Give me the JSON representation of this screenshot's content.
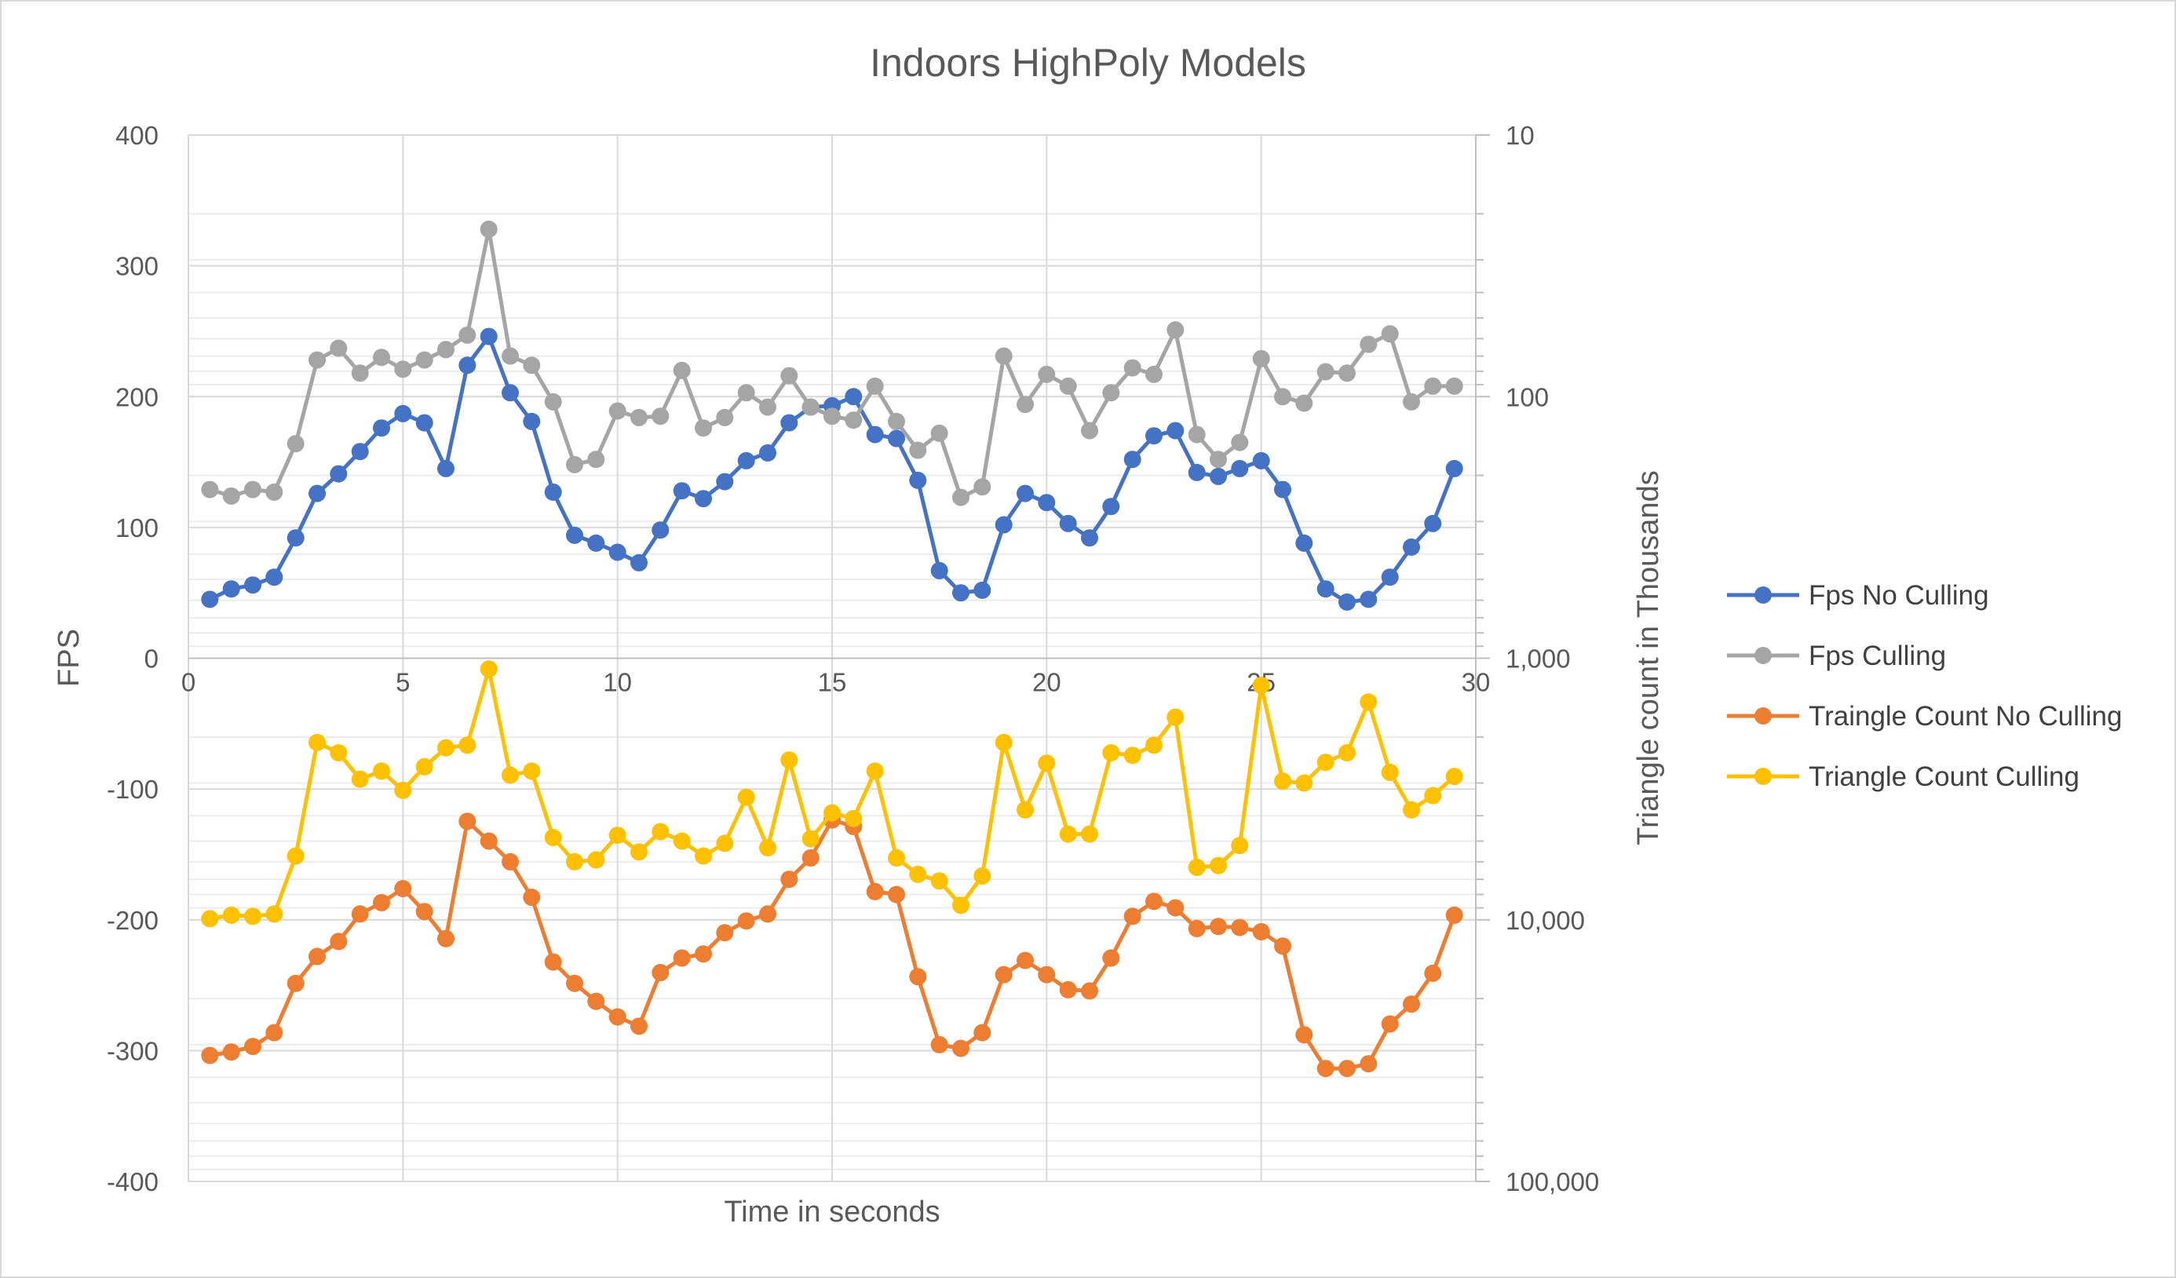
{
  "chart_data": {
    "type": "line",
    "title": "Indoors HighPoly Models",
    "xlabel": "Time in seconds",
    "ylabel": "FPS",
    "y2label": "Triangle count in Thousands",
    "xlim": [
      0,
      30
    ],
    "ylim": [
      -400,
      400
    ],
    "y2lim": [
      10,
      100000
    ],
    "y2scale": "log",
    "y2reversed": true,
    "x_ticks": [
      "0",
      "5",
      "10",
      "15",
      "20",
      "25",
      "30"
    ],
    "y_ticks": [
      "400",
      "300",
      "200",
      "100",
      "0",
      "-100",
      "-200",
      "-300",
      "-400"
    ],
    "y2_ticks": [
      "10",
      "100",
      "1,000",
      "10,000",
      "100,000"
    ],
    "grid": true,
    "legend_position": "right",
    "x": [
      0.5,
      1.0,
      1.5,
      2.0,
      2.5,
      3.0,
      3.5,
      4.0,
      4.5,
      5.0,
      5.5,
      6.0,
      6.5,
      7.0,
      7.5,
      8.0,
      8.5,
      9.0,
      9.5,
      10.0,
      10.5,
      11.0,
      11.5,
      12.0,
      12.5,
      13.0,
      13.5,
      14.0,
      14.5,
      15.0,
      15.5,
      16.0,
      16.5,
      17.0,
      17.5,
      18.0,
      18.5,
      19.0,
      19.5,
      20.0,
      20.5,
      21.0,
      21.5,
      22.0,
      22.5,
      23.0,
      23.5,
      24.0,
      24.5,
      25.0,
      25.5,
      26.0,
      26.5,
      27.0,
      27.5,
      28.0,
      28.5,
      29.0,
      29.5,
      30.0
    ],
    "series": [
      {
        "name": "Fps No Culling",
        "axis": "left",
        "color": "#4472C4",
        "values": [
          45,
          53,
          56,
          62,
          92,
          126,
          141,
          158,
          176,
          187,
          180,
          145,
          224,
          246,
          203,
          181,
          127,
          94,
          88,
          81,
          73,
          98,
          128,
          122,
          135,
          151,
          157,
          180,
          192,
          193,
          200,
          171,
          168,
          136,
          67,
          50,
          52,
          102,
          126,
          119,
          103,
          92,
          116,
          152,
          170,
          174,
          142,
          139,
          145,
          151,
          129,
          88,
          53,
          43,
          45,
          62,
          85,
          103,
          145,
          null
        ]
      },
      {
        "name": "Fps Culling",
        "axis": "left",
        "color": "#A5A5A5",
        "values": [
          129,
          124,
          129,
          127,
          164,
          228,
          237,
          218,
          230,
          221,
          228,
          236,
          247,
          328,
          231,
          224,
          196,
          148,
          152,
          189,
          184,
          185,
          220,
          176,
          184,
          203,
          192,
          216,
          192,
          185,
          182,
          208,
          181,
          159,
          172,
          123,
          131,
          231,
          194,
          217,
          208,
          174,
          203,
          222,
          217,
          251,
          171,
          152,
          165,
          229,
          200,
          195,
          219,
          218,
          240,
          248,
          196,
          208,
          208,
          null
        ]
      },
      {
        "name": "Traingle Count No Culling",
        "axis": "right",
        "color": "#ED7D31",
        "values": [
          33000,
          32000,
          30500,
          27000,
          17500,
          13800,
          12100,
          9500,
          8600,
          7600,
          9300,
          11800,
          4200,
          5000,
          6000,
          8200,
          14500,
          17500,
          20500,
          23500,
          25500,
          15900,
          14000,
          13500,
          11200,
          10100,
          9500,
          7000,
          5800,
          4150,
          4400,
          7800,
          8000,
          16500,
          30000,
          31000,
          27000,
          16200,
          14300,
          16200,
          18500,
          18700,
          14000,
          9700,
          8500,
          9000,
          10800,
          10600,
          10700,
          11100,
          12600,
          27500,
          37000,
          37000,
          35500,
          25000,
          21000,
          16000,
          9600,
          null
        ]
      },
      {
        "name": "Triangle Count Culling",
        "axis": "right",
        "color": "#FFC000",
        "values": [
          9900,
          9600,
          9700,
          9500,
          5700,
          2100,
          2300,
          2900,
          2700,
          3200,
          2600,
          2200,
          2150,
          1100,
          2800,
          2700,
          4850,
          6000,
          5900,
          4750,
          5500,
          4600,
          5000,
          5700,
          5100,
          3400,
          5300,
          2450,
          4900,
          3900,
          4100,
          2700,
          5800,
          6700,
          7100,
          8800,
          6800,
          2100,
          3800,
          2520,
          4700,
          4700,
          2300,
          2350,
          2150,
          1680,
          6300,
          6200,
          5200,
          1270,
          2950,
          3000,
          2500,
          2300,
          1470,
          2730,
          3800,
          3350,
          2830,
          null
        ]
      }
    ]
  }
}
